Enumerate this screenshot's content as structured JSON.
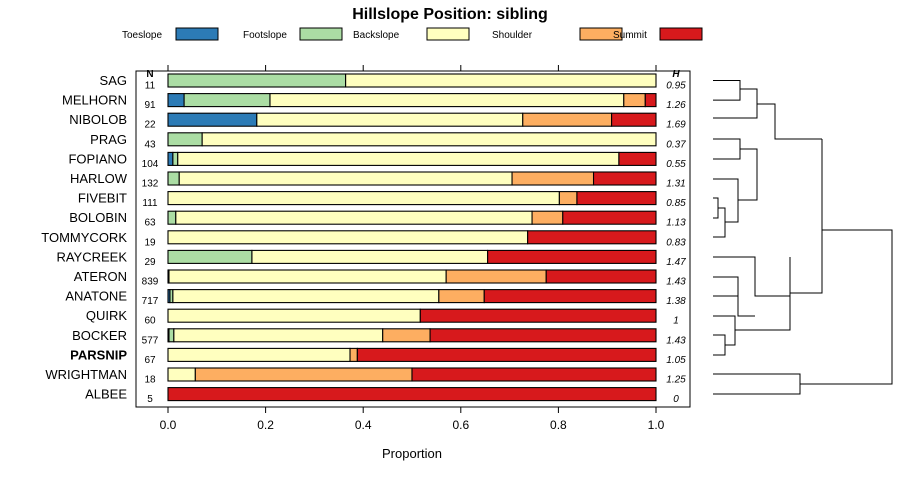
{
  "chart_data": {
    "type": "bar",
    "subtype": "stacked-horizontal-proportion",
    "title": "Hillslope Position: sibling",
    "xlabel": "Proportion",
    "xlim": [
      0,
      1
    ],
    "xticks": [
      "0.0",
      "0.2",
      "0.4",
      "0.6",
      "0.8",
      "1.0"
    ],
    "n_header": "N",
    "h_header": "H",
    "highlight": "PARSNIP",
    "series": [
      {
        "name": "Toeslope",
        "color": "#2c7bb6"
      },
      {
        "name": "Footslope",
        "color": "#abdda4"
      },
      {
        "name": "Backslope",
        "color": "#ffffbf"
      },
      {
        "name": "Shoulder",
        "color": "#fdae61"
      },
      {
        "name": "Summit",
        "color": "#d7191c"
      }
    ],
    "rows": [
      {
        "name": "SAG",
        "n": "11",
        "h": "0.95",
        "values": [
          0,
          0.364,
          0.636,
          0,
          0
        ]
      },
      {
        "name": "MELHORN",
        "n": "91",
        "h": "1.26",
        "values": [
          0.033,
          0.176,
          0.725,
          0.044,
          0.022
        ]
      },
      {
        "name": "NIBOLOB",
        "n": "22",
        "h": "1.69",
        "values": [
          0.182,
          0,
          0.545,
          0.182,
          0.091
        ]
      },
      {
        "name": "PRAG",
        "n": "43",
        "h": "0.37",
        "values": [
          0,
          0.07,
          0.93,
          0,
          0
        ]
      },
      {
        "name": "FOPIANO",
        "n": "104",
        "h": "0.55",
        "values": [
          0.01,
          0.01,
          0.904,
          0,
          0.076
        ]
      },
      {
        "name": "HARLOW",
        "n": "132",
        "h": "1.31",
        "values": [
          0,
          0.023,
          0.682,
          0.167,
          0.128
        ]
      },
      {
        "name": "FIVEBIT",
        "n": "111",
        "h": "0.85",
        "values": [
          0,
          0,
          0.802,
          0.036,
          0.162
        ]
      },
      {
        "name": "BOLOBIN",
        "n": "63",
        "h": "1.13",
        "values": [
          0,
          0.016,
          0.73,
          0.063,
          0.191
        ]
      },
      {
        "name": "TOMMYCORK",
        "n": "19",
        "h": "0.83",
        "values": [
          0,
          0,
          0.737,
          0,
          0.263
        ]
      },
      {
        "name": "RAYCREEK",
        "n": "29",
        "h": "1.47",
        "values": [
          0,
          0.172,
          0.483,
          0,
          0.345
        ]
      },
      {
        "name": "ATERON",
        "n": "839",
        "h": "1.43",
        "values": [
          0.001,
          0.001,
          0.568,
          0.205,
          0.225
        ]
      },
      {
        "name": "ANATONE",
        "n": "717",
        "h": "1.38",
        "values": [
          0.004,
          0.006,
          0.545,
          0.093,
          0.352
        ]
      },
      {
        "name": "QUIRK",
        "n": "60",
        "h": "1",
        "values": [
          0,
          0,
          0.517,
          0,
          0.483
        ]
      },
      {
        "name": "BOCKER",
        "n": "577",
        "h": "1.43",
        "values": [
          0.002,
          0.01,
          0.428,
          0.097,
          0.463
        ]
      },
      {
        "name": "PARSNIP",
        "n": "67",
        "h": "1.05",
        "values": [
          0,
          0,
          0.373,
          0.015,
          0.612
        ]
      },
      {
        "name": "WRIGHTMAN",
        "n": "18",
        "h": "1.25",
        "values": [
          0,
          0,
          0.056,
          0.444,
          0.5
        ]
      },
      {
        "name": "ALBEE",
        "n": "5",
        "h": "0",
        "values": [
          0,
          0,
          0,
          0,
          1
        ]
      }
    ]
  }
}
